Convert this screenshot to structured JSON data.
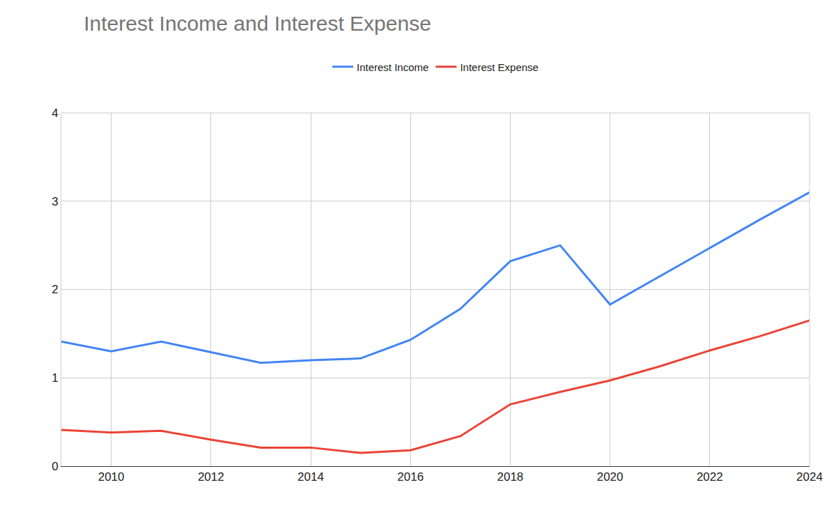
{
  "chart_data": {
    "type": "line",
    "title": "Interest Income and Interest Expense",
    "x": [
      2009,
      2010,
      2011,
      2012,
      2013,
      2014,
      2015,
      2016,
      2017,
      2018,
      2019,
      2020,
      2021,
      2022,
      2023,
      2024
    ],
    "series": [
      {
        "name": "Interest Income",
        "color": "#4285f4",
        "values": [
          1.41,
          1.3,
          1.41,
          1.29,
          1.17,
          1.2,
          1.22,
          1.43,
          1.78,
          2.32,
          2.5,
          1.83,
          2.15,
          2.47,
          2.79,
          3.1
        ]
      },
      {
        "name": "Interest Expense",
        "color": "#ea4335",
        "values": [
          0.41,
          0.38,
          0.4,
          0.3,
          0.21,
          0.21,
          0.15,
          0.18,
          0.34,
          0.7,
          0.84,
          0.97,
          1.13,
          1.31,
          1.47,
          1.65
        ]
      }
    ],
    "xlim": [
      2009,
      2024
    ],
    "xticks": [
      2010,
      2012,
      2014,
      2016,
      2018,
      2020,
      2022,
      2024
    ],
    "ylim": [
      0,
      4
    ],
    "yticks": [
      0,
      1,
      2,
      3,
      4
    ],
    "grid": true,
    "legend": "top"
  }
}
